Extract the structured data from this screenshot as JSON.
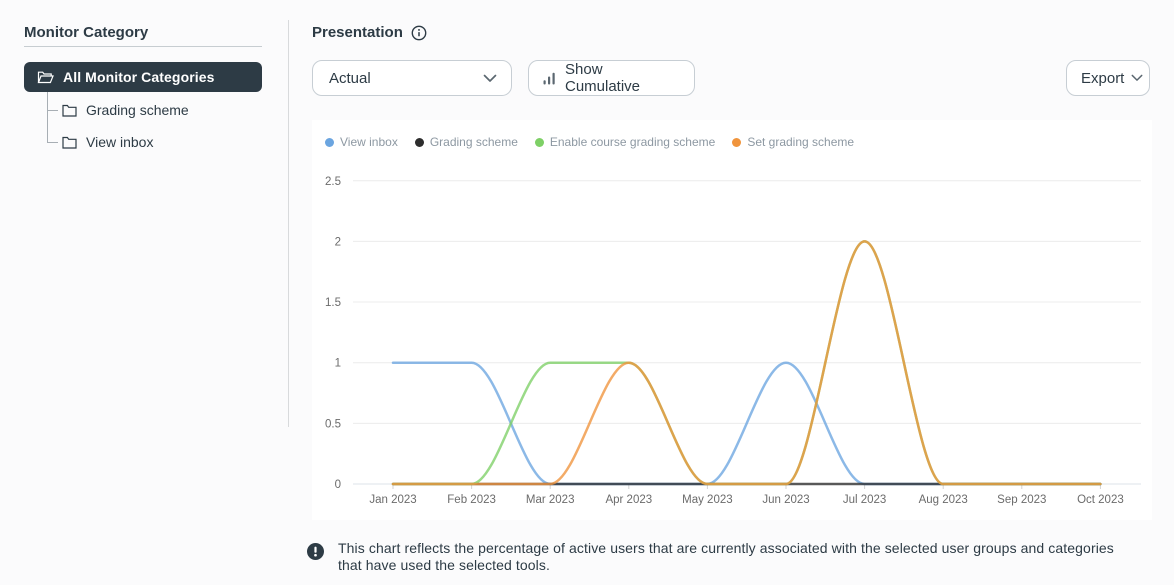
{
  "sidebar": {
    "title": "Monitor Category",
    "items": [
      {
        "label": "All Monitor Categories",
        "selected": true
      },
      {
        "label": "Grading scheme",
        "selected": false
      },
      {
        "label": "View inbox",
        "selected": false
      }
    ]
  },
  "header": {
    "title": "Presentation"
  },
  "toolbar": {
    "presentation_select": {
      "value": "Actual"
    },
    "cumulative_button": "Show Cumulative",
    "export_button": "Export"
  },
  "footnote": "This chart reflects the percentage of active users that are currently associated with the selected user groups and categories that have used the selected tools.",
  "icons": {
    "info-circle": "i",
    "alert-circle": "!",
    "chevron-down": "v",
    "folder-open": "open folder",
    "folder": "folder",
    "bar-chart": "ascending bars"
  },
  "colors": {
    "ink": "#2d3b45",
    "selected_row_bg": "#2d3b45",
    "border": "#c7ced4",
    "grid": "#ececec",
    "zero_line": "#dde3e9",
    "tick_text": "#6b6b6b"
  },
  "chart_data": {
    "type": "line",
    "x": [
      "Jan 2023",
      "Feb 2023",
      "Mar 2023",
      "Apr 2023",
      "May 2023",
      "Jun 2023",
      "Jul 2023",
      "Aug 2023",
      "Sep 2023",
      "Oct 2023"
    ],
    "series": [
      {
        "name": "View inbox",
        "color": "#6ba5e0",
        "values": [
          1,
          1,
          0,
          0,
          0,
          1,
          0,
          0,
          0,
          0
        ]
      },
      {
        "name": "Grading scheme",
        "color": "#2d2d2d",
        "values": [
          0,
          0,
          0,
          0,
          0,
          0,
          0,
          0,
          0,
          0
        ]
      },
      {
        "name": "Enable course grading scheme",
        "color": "#7ed066",
        "values": [
          0,
          0,
          1,
          1,
          0,
          0,
          2,
          0,
          0,
          0
        ]
      },
      {
        "name": "Set grading scheme",
        "color": "#f0943c",
        "values": [
          0,
          0,
          0,
          1,
          0,
          0,
          2,
          0,
          0,
          0
        ]
      }
    ],
    "ylim": [
      0,
      2.5
    ],
    "yticks": [
      0,
      0.5,
      1,
      1.5,
      2,
      2.5
    ],
    "grid": true,
    "legend_position": "top-left",
    "interpolation": "monotone",
    "line_opacity": 0.78
  }
}
